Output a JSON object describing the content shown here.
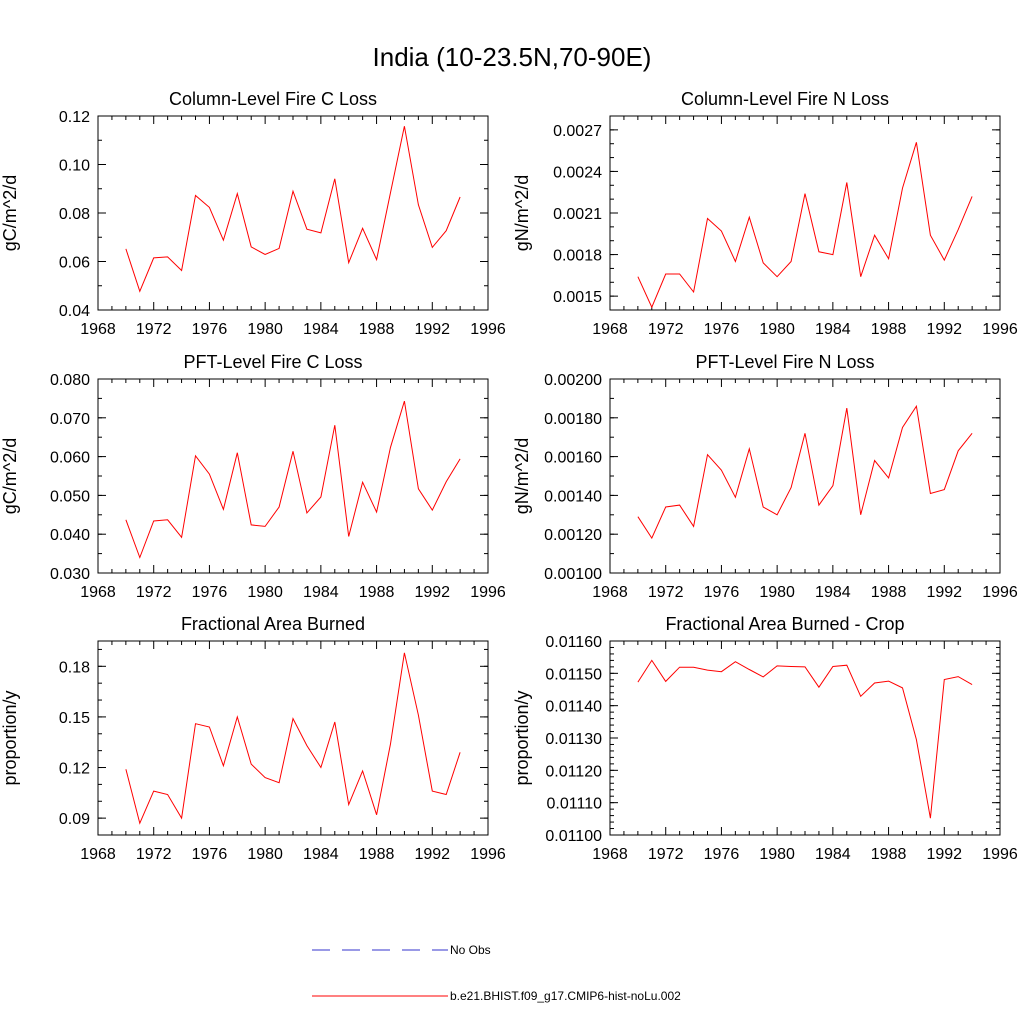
{
  "figure": {
    "title": "India (10-23.5N,70-90E)"
  },
  "legend": [
    {
      "label": "No Obs",
      "color": "#3333cc",
      "style": "dashed"
    },
    {
      "label": "b.e21.BHIST.f09_g17.CMIP6-hist-noLu.002",
      "color": "#ff0000",
      "style": "solid"
    }
  ],
  "chart_data": [
    {
      "type": "line",
      "title": "Column-Level Fire C Loss",
      "ylabel": "gC/m^2/d",
      "xlabel": "",
      "xlim": [
        1968,
        1996
      ],
      "xticks": [
        1968,
        1972,
        1976,
        1980,
        1984,
        1988,
        1992,
        1996
      ],
      "xtick_labels": [
        "1968",
        "1972",
        "1976",
        "1980",
        "1984",
        "1988",
        "1992",
        "1996"
      ],
      "ylim": [
        0.04,
        0.12
      ],
      "yticks": [
        0.04,
        0.06,
        0.08,
        0.1,
        0.12
      ],
      "ytick_labels": [
        "0.04",
        "0.06",
        "0.08",
        "0.10",
        "0.12"
      ],
      "yminor": 0.01,
      "series": [
        {
          "name": "b.e21.BHIST.f09_g17.CMIP6-hist-noLu.002",
          "x": [
            1970,
            1971,
            1972,
            1973,
            1974,
            1975,
            1976,
            1977,
            1978,
            1979,
            1980,
            1981,
            1982,
            1983,
            1984,
            1985,
            1986,
            1987,
            1988,
            1989,
            1990,
            1991,
            1992,
            1993,
            1994
          ],
          "values": [
            0.0652,
            0.0477,
            0.0615,
            0.0619,
            0.0563,
            0.0872,
            0.0823,
            0.0688,
            0.088,
            0.066,
            0.0629,
            0.0654,
            0.089,
            0.0733,
            0.0718,
            0.0941,
            0.0595,
            0.0737,
            0.0608,
            0.0884,
            0.1158,
            0.0834,
            0.0658,
            0.0727,
            0.0866
          ]
        }
      ]
    },
    {
      "type": "line",
      "title": "Column-Level Fire N Loss",
      "ylabel": "gN/m^2/d",
      "xlabel": "",
      "xlim": [
        1968,
        1996
      ],
      "xticks": [
        1968,
        1972,
        1976,
        1980,
        1984,
        1988,
        1992,
        1996
      ],
      "xtick_labels": [
        "1968",
        "1972",
        "1976",
        "1980",
        "1984",
        "1988",
        "1992",
        "1996"
      ],
      "ylim": [
        0.0014,
        0.0028
      ],
      "yticks": [
        0.0015,
        0.0018,
        0.0021,
        0.0024,
        0.0027
      ],
      "ytick_labels": [
        "0.0015",
        "0.0018",
        "0.0021",
        "0.0024",
        "0.0027"
      ],
      "yminor": 0.0001,
      "series": [
        {
          "name": "b.e21.BHIST.f09_g17.CMIP6-hist-noLu.002",
          "x": [
            1970,
            1971,
            1972,
            1973,
            1974,
            1975,
            1976,
            1977,
            1978,
            1979,
            1980,
            1981,
            1982,
            1983,
            1984,
            1985,
            1986,
            1987,
            1988,
            1989,
            1990,
            1991,
            1992,
            1993,
            1994
          ],
          "values": [
            0.00164,
            0.00142,
            0.00166,
            0.00166,
            0.00153,
            0.00206,
            0.00197,
            0.00175,
            0.00207,
            0.00174,
            0.00164,
            0.00175,
            0.00224,
            0.00182,
            0.0018,
            0.00232,
            0.00164,
            0.00194,
            0.00177,
            0.00228,
            0.00261,
            0.00194,
            0.00176,
            0.00198,
            0.00222
          ]
        }
      ]
    },
    {
      "type": "line",
      "title": "PFT-Level Fire C Loss",
      "ylabel": "gC/m^2/d",
      "xlabel": "",
      "xlim": [
        1968,
        1996
      ],
      "xticks": [
        1968,
        1972,
        1976,
        1980,
        1984,
        1988,
        1992,
        1996
      ],
      "xtick_labels": [
        "1968",
        "1972",
        "1976",
        "1980",
        "1984",
        "1988",
        "1992",
        "1996"
      ],
      "ylim": [
        0.03,
        0.08
      ],
      "yticks": [
        0.03,
        0.04,
        0.05,
        0.06,
        0.07,
        0.08
      ],
      "ytick_labels": [
        "0.030",
        "0.040",
        "0.050",
        "0.060",
        "0.070",
        "0.080"
      ],
      "yminor": 0.005,
      "series": [
        {
          "name": "b.e21.BHIST.f09_g17.CMIP6-hist-noLu.002",
          "x": [
            1970,
            1971,
            1972,
            1973,
            1974,
            1975,
            1976,
            1977,
            1978,
            1979,
            1980,
            1981,
            1982,
            1983,
            1984,
            1985,
            1986,
            1987,
            1988,
            1989,
            1990,
            1991,
            1992,
            1993,
            1994
          ],
          "values": [
            0.0437,
            0.034,
            0.0434,
            0.0437,
            0.0392,
            0.0602,
            0.0555,
            0.0464,
            0.061,
            0.0424,
            0.042,
            0.047,
            0.0614,
            0.0455,
            0.0496,
            0.0681,
            0.0394,
            0.0534,
            0.0457,
            0.0624,
            0.0743,
            0.0517,
            0.0462,
            0.0535,
            0.0594
          ]
        }
      ]
    },
    {
      "type": "line",
      "title": "PFT-Level Fire N Loss",
      "ylabel": "gN/m^2/d",
      "xlabel": "",
      "xlim": [
        1968,
        1996
      ],
      "xticks": [
        1968,
        1972,
        1976,
        1980,
        1984,
        1988,
        1992,
        1996
      ],
      "xtick_labels": [
        "1968",
        "1972",
        "1976",
        "1980",
        "1984",
        "1988",
        "1992",
        "1996"
      ],
      "ylim": [
        0.001,
        0.002
      ],
      "yticks": [
        0.001,
        0.0012,
        0.0014,
        0.0016,
        0.0018,
        0.002
      ],
      "ytick_labels": [
        "0.00100",
        "0.00120",
        "0.00140",
        "0.00160",
        "0.00180",
        "0.00200"
      ],
      "yminor": 0.0001,
      "series": [
        {
          "name": "b.e21.BHIST.f09_g17.CMIP6-hist-noLu.002",
          "x": [
            1970,
            1971,
            1972,
            1973,
            1974,
            1975,
            1976,
            1977,
            1978,
            1979,
            1980,
            1981,
            1982,
            1983,
            1984,
            1985,
            1986,
            1987,
            1988,
            1989,
            1990,
            1991,
            1992,
            1993,
            1994
          ],
          "values": [
            0.00129,
            0.00118,
            0.00134,
            0.00135,
            0.00124,
            0.00161,
            0.00153,
            0.00139,
            0.00164,
            0.00134,
            0.0013,
            0.00144,
            0.00172,
            0.00135,
            0.00145,
            0.00185,
            0.0013,
            0.00158,
            0.00149,
            0.00175,
            0.00186,
            0.00141,
            0.00143,
            0.00163,
            0.00172
          ]
        }
      ]
    },
    {
      "type": "line",
      "title": "Fractional Area Burned",
      "ylabel": "proportion/y",
      "xlabel": "",
      "xlim": [
        1968,
        1996
      ],
      "xticks": [
        1968,
        1972,
        1976,
        1980,
        1984,
        1988,
        1992,
        1996
      ],
      "xtick_labels": [
        "1968",
        "1972",
        "1976",
        "1980",
        "1984",
        "1988",
        "1992",
        "1996"
      ],
      "ylim": [
        0.08,
        0.195
      ],
      "yticks": [
        0.09,
        0.12,
        0.15,
        0.18
      ],
      "ytick_labels": [
        "0.09",
        "0.12",
        "0.15",
        "0.18"
      ],
      "yminor": 0.01,
      "series": [
        {
          "name": "b.e21.BHIST.f09_g17.CMIP6-hist-noLu.002",
          "x": [
            1970,
            1971,
            1972,
            1973,
            1974,
            1975,
            1976,
            1977,
            1978,
            1979,
            1980,
            1981,
            1982,
            1983,
            1984,
            1985,
            1986,
            1987,
            1988,
            1989,
            1990,
            1991,
            1992,
            1993,
            1994
          ],
          "values": [
            0.119,
            0.087,
            0.106,
            0.104,
            0.09,
            0.146,
            0.144,
            0.121,
            0.15,
            0.122,
            0.114,
            0.111,
            0.149,
            0.133,
            0.12,
            0.147,
            0.098,
            0.118,
            0.092,
            0.134,
            0.188,
            0.151,
            0.106,
            0.104,
            0.129
          ]
        }
      ]
    },
    {
      "type": "line",
      "title": "Fractional Area Burned - Crop",
      "ylabel": "proportion/y",
      "xlabel": "",
      "xlim": [
        1968,
        1996
      ],
      "xticks": [
        1968,
        1972,
        1976,
        1980,
        1984,
        1988,
        1992,
        1996
      ],
      "xtick_labels": [
        "1968",
        "1972",
        "1976",
        "1980",
        "1984",
        "1988",
        "1992",
        "1996"
      ],
      "ylim": [
        0.011,
        0.0116
      ],
      "yticks": [
        0.011,
        0.0111,
        0.0112,
        0.0113,
        0.0114,
        0.0115,
        0.0116
      ],
      "ytick_labels": [
        "0.01100",
        "0.01110",
        "0.01120",
        "0.01130",
        "0.01140",
        "0.01150",
        "0.01160"
      ],
      "yminor": 2e-05,
      "series": [
        {
          "name": "b.e21.BHIST.f09_g17.CMIP6-hist-noLu.002",
          "x": [
            1970,
            1971,
            1972,
            1973,
            1974,
            1975,
            1976,
            1977,
            1978,
            1979,
            1980,
            1981,
            1982,
            1983,
            1984,
            1985,
            1986,
            1987,
            1988,
            1989,
            1990,
            1991,
            1992,
            1993,
            1994
          ],
          "values": [
            0.011473,
            0.01154,
            0.011475,
            0.011519,
            0.011519,
            0.01151,
            0.011505,
            0.011536,
            0.011512,
            0.011489,
            0.011523,
            0.011521,
            0.01152,
            0.011457,
            0.011521,
            0.011525,
            0.011429,
            0.01147,
            0.011476,
            0.011455,
            0.011295,
            0.011052,
            0.011481,
            0.01149,
            0.011465
          ]
        }
      ]
    }
  ]
}
